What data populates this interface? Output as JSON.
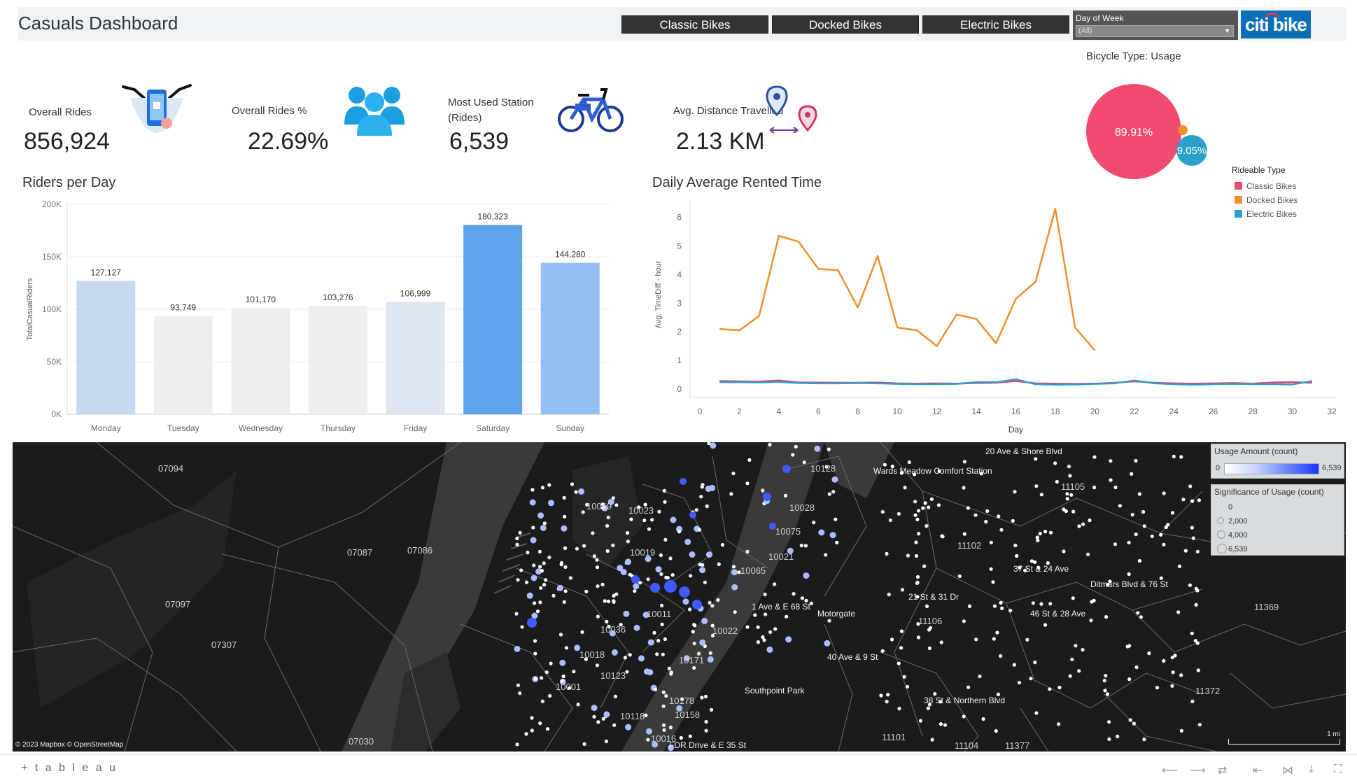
{
  "header": {
    "title": "Casuals Dashboard",
    "type_buttons": [
      "Classic Bikes",
      "Docked Bikes",
      "Electric Bikes"
    ],
    "filter_label": "Day of Week",
    "filter_value": "(All)",
    "logo_text": "citi bike"
  },
  "kpis": [
    {
      "label": "Overall Rides",
      "value": "856,924",
      "icon": "phone-bike-unlock-icon"
    },
    {
      "label": "Overall Rides %",
      "value": "22.69%",
      "icon": "users-group-icon"
    },
    {
      "label": "Most Used Station (Rides)",
      "value": "6,539",
      "icon": "bicycle-icon"
    },
    {
      "label": "Avg. Distance Travelled",
      "value": "2.13 KM",
      "icon": "map-pins-distance-icon"
    }
  ],
  "chart_data": [
    {
      "type": "bar",
      "title": "Riders per Day",
      "ylabel": "TotalCasualRiders",
      "categories": [
        "Monday",
        "Tuesday",
        "Wednesday",
        "Thursday",
        "Friday",
        "Saturday",
        "Sunday"
      ],
      "values": [
        127127,
        93749,
        101170,
        103276,
        106999,
        180323,
        144280
      ],
      "value_labels": [
        "127,127",
        "93,749",
        "101,170",
        "103,276",
        "106,999",
        "180,323",
        "144,280"
      ],
      "colors": [
        "#c6d9f0",
        "#efefef",
        "#efefef",
        "#efefef",
        "#dfe6ef",
        "#5fa2ec",
        "#93bff2"
      ],
      "yticks": [
        0,
        50000,
        100000,
        150000,
        200000
      ],
      "ytick_labels": [
        "0K",
        "50K",
        "100K",
        "150K",
        "200K"
      ],
      "ylim": [
        0,
        200000
      ],
      "grid": true
    },
    {
      "type": "line",
      "title": "Daily Average Rented Time",
      "xlabel": "Day",
      "ylabel": "Avg. TimeDiff - hour",
      "xlim": [
        0,
        32
      ],
      "ylim": [
        0,
        6.6
      ],
      "xticks": [
        0,
        2,
        4,
        6,
        8,
        10,
        12,
        14,
        16,
        18,
        20,
        22,
        24,
        26,
        28,
        30,
        32
      ],
      "yticks": [
        0,
        1,
        2,
        3,
        4,
        5,
        6
      ],
      "series": [
        {
          "name": "Docked Bikes",
          "color": "#f28e2b",
          "x": [
            1,
            2,
            3,
            4,
            5,
            6,
            7,
            8,
            9,
            10,
            11,
            12,
            13,
            14,
            15,
            16,
            17,
            18,
            19,
            20
          ],
          "y": [
            2.1,
            2.05,
            2.55,
            5.35,
            5.15,
            4.2,
            4.15,
            2.85,
            4.65,
            2.15,
            2.05,
            1.5,
            2.6,
            2.45,
            1.6,
            3.15,
            3.75,
            6.3,
            2.15,
            1.35
          ]
        },
        {
          "name": "Classic Bikes",
          "color": "#e8416f",
          "x": [
            1,
            2,
            3,
            4,
            5,
            6,
            7,
            8,
            9,
            10,
            11,
            12,
            13,
            14,
            15,
            16,
            17,
            18,
            19,
            20,
            21,
            22,
            23,
            24,
            25,
            26,
            27,
            28,
            29,
            30,
            31
          ],
          "y": [
            0.28,
            0.27,
            0.26,
            0.3,
            0.23,
            0.23,
            0.22,
            0.22,
            0.23,
            0.2,
            0.19,
            0.2,
            0.19,
            0.21,
            0.22,
            0.28,
            0.2,
            0.19,
            0.18,
            0.19,
            0.22,
            0.27,
            0.22,
            0.2,
            0.19,
            0.2,
            0.21,
            0.19,
            0.23,
            0.24,
            0.22
          ]
        },
        {
          "name": "Electric Bikes",
          "color": "#2ba0c9",
          "x": [
            1,
            2,
            3,
            4,
            5,
            6,
            7,
            8,
            9,
            10,
            11,
            12,
            13,
            14,
            15,
            16,
            17,
            18,
            19,
            20,
            21,
            22,
            23,
            24,
            25,
            26,
            27,
            28,
            29,
            30,
            31
          ],
          "y": [
            0.24,
            0.24,
            0.23,
            0.25,
            0.21,
            0.2,
            0.2,
            0.21,
            0.2,
            0.18,
            0.17,
            0.17,
            0.18,
            0.24,
            0.24,
            0.34,
            0.17,
            0.15,
            0.16,
            0.18,
            0.2,
            0.3,
            0.2,
            0.17,
            0.15,
            0.17,
            0.18,
            0.17,
            0.17,
            0.16,
            0.28
          ]
        }
      ]
    },
    {
      "type": "bubble",
      "title": "Bicycle Type: Usage",
      "legend_title": "Rideable Type",
      "items": [
        {
          "name": "Classic Bikes",
          "value": 89.91,
          "label": "89.91%",
          "color": "#f04b6e"
        },
        {
          "name": "Docked Bikes",
          "value": 1.04,
          "label": "",
          "color": "#f28e2b"
        },
        {
          "name": "Electric Bikes",
          "value": 9.05,
          "label": "9.05%",
          "color": "#2ba0c9"
        }
      ]
    }
  ],
  "map": {
    "credit": "© 2023 Mapbox  © OpenStreetMap",
    "scale_label": "1 mi",
    "zip_labels": [
      "07094",
      "07087",
      "07086",
      "07097",
      "07307",
      "07030",
      "10069",
      "10023",
      "10128",
      "10028",
      "10075",
      "10021",
      "10065",
      "10019",
      "10036",
      "10018",
      "10001",
      "10123",
      "10011",
      "10171",
      "10022",
      "10118",
      "10178",
      "10158",
      "10016",
      "11105",
      "11102",
      "11106",
      "11369",
      "11372",
      "11101",
      "11104",
      "11377"
    ],
    "station_labels": [
      "20 Ave & Shore Blvd",
      "Wards Meadow Comfort Station",
      "1 Ave & E 68 St",
      "Motorgate",
      "21 St & 31 Dr",
      "37 St & 24 Ave",
      "Ditmars Blvd & 76 St",
      "46 St & 28 Ave",
      "40 Ave & 9 St",
      "Southpoint Park",
      "38 St & Northern Blvd",
      "FDR Drive & E 35 St"
    ],
    "usage_legend": {
      "title": "Usage Amount (count)",
      "min": "0",
      "max": "6,539"
    },
    "size_legend": {
      "title": "Significance of Usage (count)",
      "items": [
        "0",
        "2,000",
        "4,000",
        "6,539"
      ]
    }
  },
  "footer": {
    "brand": "+ t a b l e a u"
  }
}
